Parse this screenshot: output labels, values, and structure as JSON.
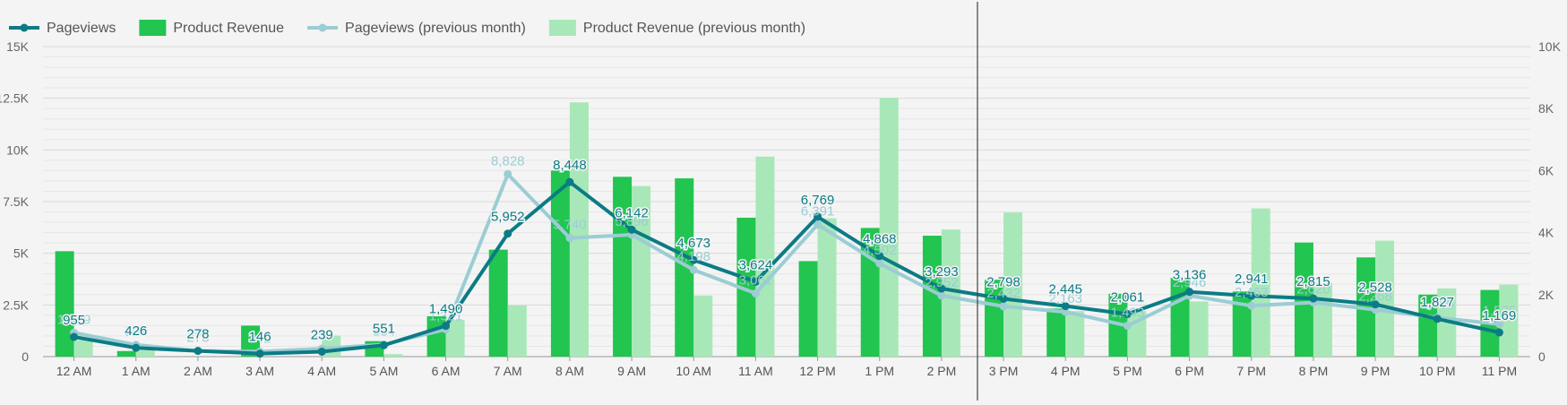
{
  "chart_data": {
    "type": "bar",
    "categories": [
      "12 AM",
      "1 AM",
      "2 AM",
      "3 AM",
      "4 AM",
      "5 AM",
      "6 AM",
      "7 AM",
      "8 AM",
      "9 AM",
      "10 AM",
      "11 AM",
      "12 PM",
      "1 PM",
      "2 PM",
      "3 PM",
      "4 PM",
      "5 PM",
      "6 PM",
      "7 PM",
      "8 PM",
      "9 PM",
      "10 PM",
      "11 PM"
    ],
    "left_axis": {
      "ylim": [
        0,
        15000
      ],
      "ticks": [
        "0",
        "2.5K",
        "5K",
        "7.5K",
        "10K",
        "12.5K",
        "15K"
      ]
    },
    "right_axis": {
      "ylim": [
        0,
        10000
      ],
      "ticks": [
        "0",
        "2K",
        "4K",
        "6K",
        "8K",
        "10K"
      ]
    },
    "series": [
      {
        "name": "Pageviews",
        "kind": "line",
        "axis": "left",
        "color": "#0c7b85",
        "values": [
          955,
          426,
          278,
          146,
          239,
          551,
          1490,
          5952,
          8448,
          6142,
          4673,
          3624,
          6769,
          4868,
          3293,
          2798,
          2445,
          2061,
          3136,
          2941,
          2815,
          2528,
          1827,
          1169
        ],
        "labels": [
          "955",
          "426",
          "278",
          "146",
          "239",
          "551",
          "1,490",
          "5,952",
          "8,448",
          "6,142",
          "4,673",
          "3,624",
          "6,769",
          "4,868",
          "3,293",
          "2,798",
          "2,445",
          "2,061",
          "3,136",
          "2,941",
          "2,815",
          "2,528",
          "1,827",
          "1,169"
        ]
      },
      {
        "name": "Product Revenue",
        "kind": "bar",
        "axis": "right",
        "color": "#21c54f",
        "values": [
          3400,
          180,
          0,
          1000,
          0,
          500,
          1300,
          3450,
          6000,
          5800,
          5750,
          4480,
          3080,
          4150,
          3900,
          2480,
          1550,
          2030,
          2540,
          2100,
          3680,
          3200,
          2000,
          2150
        ]
      },
      {
        "name": "Pageviews (previous month)",
        "kind": "line",
        "axis": "left",
        "color": "#9bcdd3",
        "values": [
          1159,
          567,
          278,
          242,
          386,
          584,
          1321,
          8828,
          5740,
          5896,
          4198,
          3061,
          6391,
          4502,
          2952,
          2432,
          2163,
          1493,
          2946,
          2463,
          2620,
          2268,
          1885,
          1575
        ],
        "labels": [
          "1,159",
          "567",
          "278",
          "242",
          "386",
          "584",
          "1,321",
          "8,828",
          "5,740",
          "5,896",
          "4,198",
          "3,061",
          "6,391",
          "4,502",
          "2,952",
          "2,432",
          "2,163",
          "1,493",
          "2,946",
          "2,463",
          "2,620",
          "2,268",
          "1,885",
          "1,575"
        ]
      },
      {
        "name": "Product Revenue (previous month)",
        "kind": "bar",
        "axis": "right",
        "color": "#a8e8b8",
        "values": [
          530,
          200,
          0,
          0,
          680,
          80,
          1180,
          1650,
          8200,
          5500,
          1970,
          6450,
          4460,
          8350,
          4100,
          4650,
          1470,
          1470,
          1780,
          4780,
          2380,
          3740,
          2200,
          2320
        ]
      }
    ],
    "legend_position": "top-left",
    "grid": true
  }
}
